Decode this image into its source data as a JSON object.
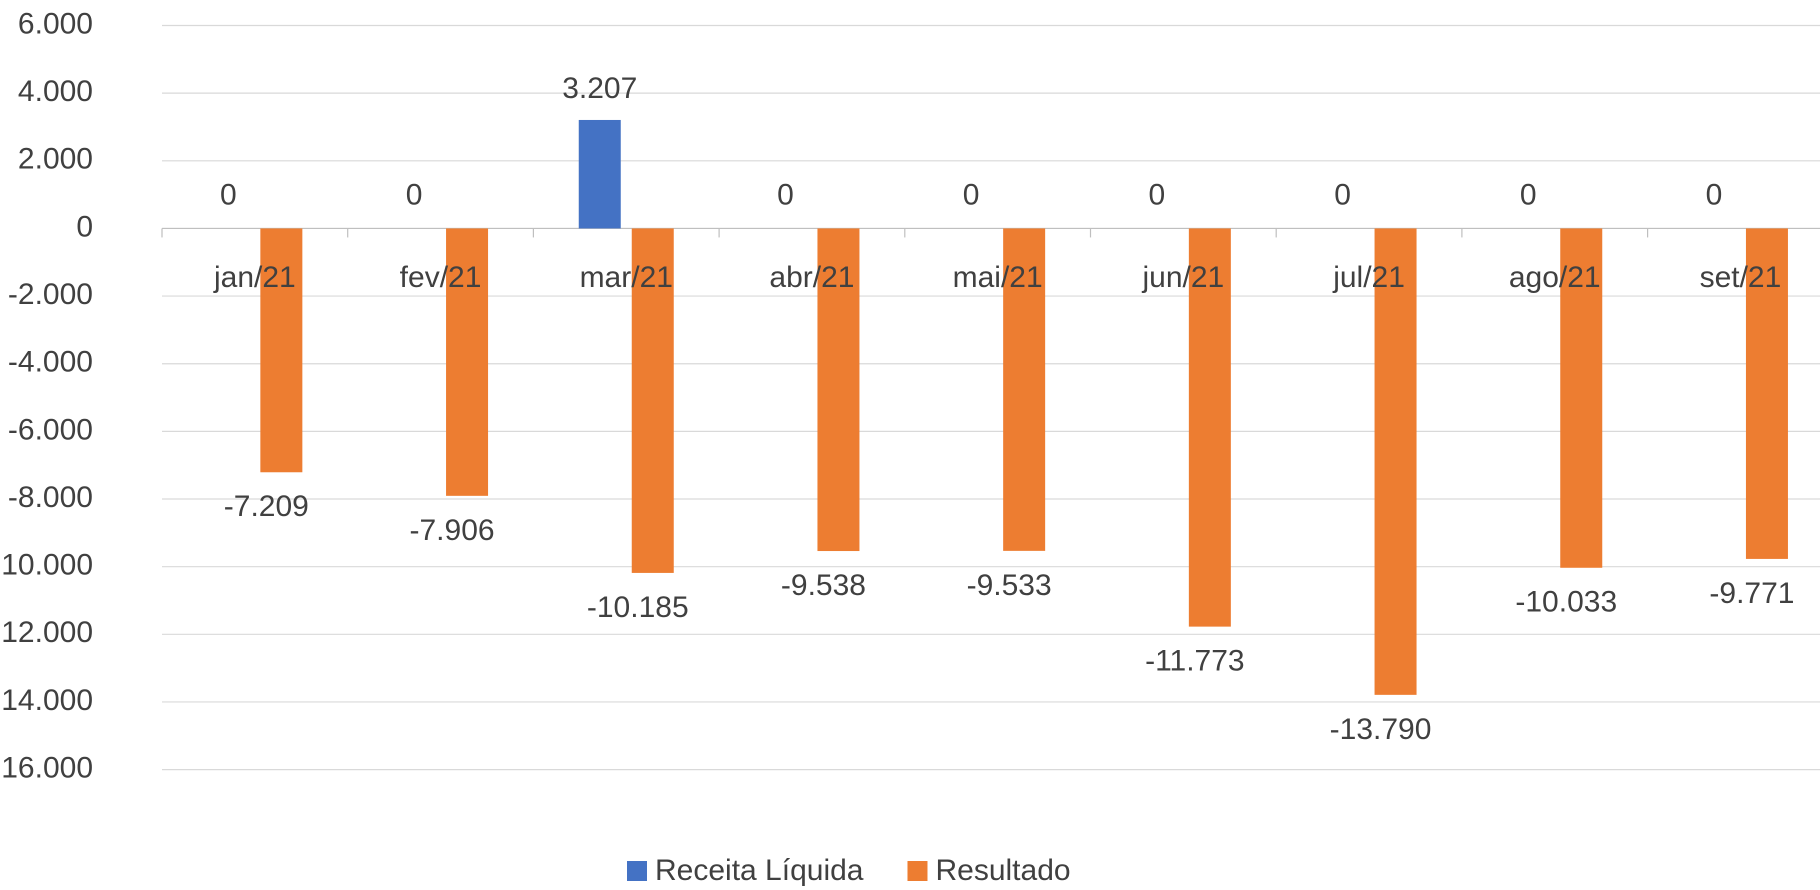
{
  "chart_data": {
    "type": "bar",
    "categories": [
      "jan/21",
      "fev/21",
      "mar/21",
      "abr/21",
      "mai/21",
      "jun/21",
      "jul/21",
      "ago/21",
      "set/21"
    ],
    "series": [
      {
        "name": "Receita Líquida",
        "color": "#4472c4",
        "values": [
          0,
          0,
          3207,
          0,
          0,
          0,
          0,
          0,
          0
        ],
        "value_labels": [
          "0",
          "0",
          "3.207",
          "0",
          "0",
          "0",
          "0",
          "0",
          "0"
        ]
      },
      {
        "name": "Resultado",
        "color": "#ed7d31",
        "values": [
          -7209,
          -7906,
          -10185,
          -9538,
          -9533,
          -11773,
          -13790,
          -10033,
          -9771
        ],
        "value_labels": [
          "-7.209",
          "-7.906",
          "-10.185",
          "-9.538",
          "-9.533",
          "-11.773",
          "-13.790",
          "-10.033",
          "-9.771"
        ]
      }
    ],
    "ylim": [
      -16000,
      6000
    ],
    "yticks": [
      {
        "value": -16000,
        "label": "-16.000"
      },
      {
        "value": -14000,
        "label": "-14.000"
      },
      {
        "value": -12000,
        "label": "-12.000"
      },
      {
        "value": -10000,
        "label": "-10.000"
      },
      {
        "value": -8000,
        "label": "-8.000"
      },
      {
        "value": -6000,
        "label": "-6.000"
      },
      {
        "value": -4000,
        "label": "-4.000"
      },
      {
        "value": -2000,
        "label": "-2.000"
      },
      0,
      {
        "value": 2000,
        "label": "2.000"
      },
      {
        "value": 4000,
        "label": "4.000"
      },
      {
        "value": 6000,
        "label": "6.000"
      }
    ],
    "grid": true,
    "legend": "bottom"
  }
}
